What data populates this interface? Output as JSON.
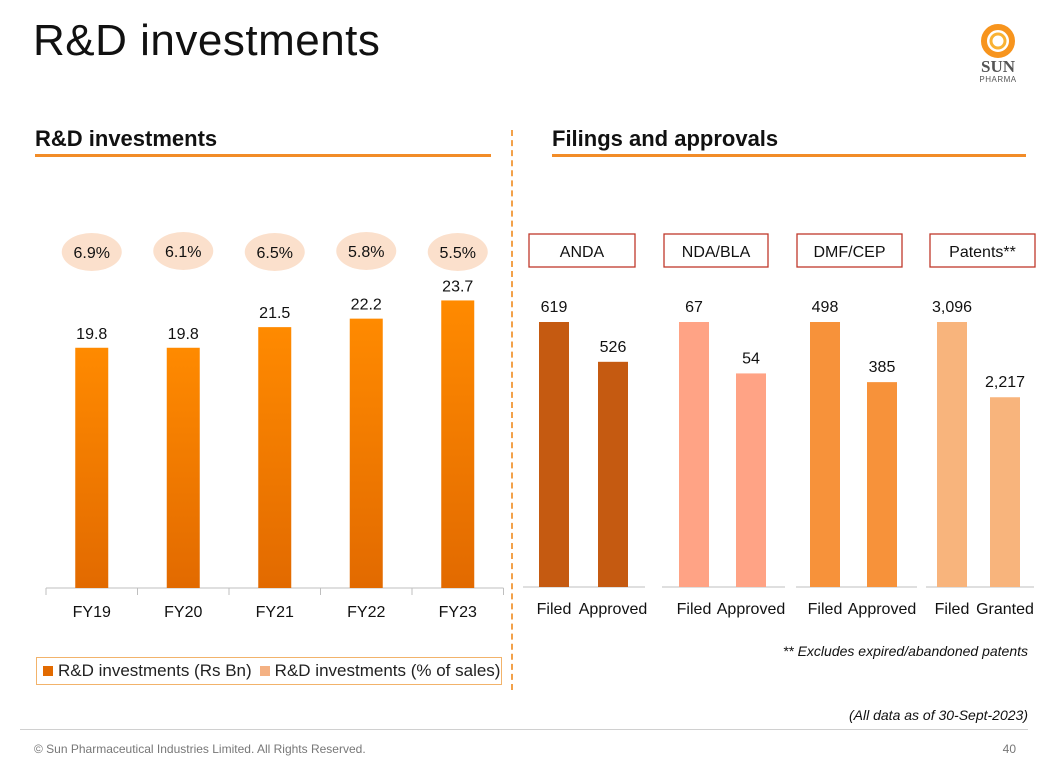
{
  "page": {
    "title": "R&D investments",
    "logo": {
      "word": "SUN",
      "sub": "PHARMA"
    },
    "note_patents": "** Excludes expired/abandoned patents",
    "note_asof": "(All data as of 30-Sept-2023)",
    "footer": "© Sun Pharmaceutical Industries Limited. All Rights Reserved.",
    "page_number": "40"
  },
  "colors": {
    "accent": "#f28c28",
    "rd_bar": "#ff8a00",
    "rd_bar_bottom": "#e26a00",
    "bubble": "#fbe0cc",
    "anda": "#c55a11",
    "nda": "#ffa385",
    "dmf": "#f7923a",
    "patents": "#f8b47c",
    "legend_pct": "#f4b183"
  },
  "chart_data": [
    {
      "type": "bar",
      "title": "R&D investments",
      "categories": [
        "FY19",
        "FY20",
        "FY21",
        "FY22",
        "FY23"
      ],
      "series": [
        {
          "name": "R&D investments (Rs Bn)",
          "values": [
            19.8,
            19.8,
            21.5,
            22.2,
            23.7
          ],
          "labels": [
            "19.8",
            "19.8",
            "21.5",
            "22.2",
            "23.7"
          ]
        },
        {
          "name": "R&D investments (% of sales)",
          "values": [
            6.9,
            6.1,
            6.5,
            5.8,
            5.5
          ],
          "labels": [
            "6.9%",
            "6.1%",
            "6.5%",
            "5.8%",
            "5.5%"
          ]
        }
      ],
      "ylim": [
        0,
        30
      ],
      "legend": "bottom"
    },
    {
      "type": "bar",
      "title": "Filings and approvals",
      "groups": [
        {
          "name": "ANDA",
          "categories": [
            "Filed",
            "Approved"
          ],
          "values": [
            619,
            526
          ],
          "labels": [
            "619",
            "526"
          ],
          "color_key": "anda"
        },
        {
          "name": "NDA/BLA",
          "categories": [
            "Filed",
            "Approved"
          ],
          "values": [
            67,
            54
          ],
          "labels": [
            "67",
            "54"
          ],
          "color_key": "nda"
        },
        {
          "name": "DMF/CEP",
          "categories": [
            "Filed",
            "Approved"
          ],
          "values": [
            498,
            385
          ],
          "labels": [
            "498",
            "385"
          ],
          "color_key": "dmf"
        },
        {
          "name": "Patents**",
          "categories": [
            "Filed",
            "Granted"
          ],
          "values": [
            3096,
            2217
          ],
          "labels": [
            "3,096",
            "2,217"
          ],
          "color_key": "patents"
        }
      ]
    }
  ]
}
